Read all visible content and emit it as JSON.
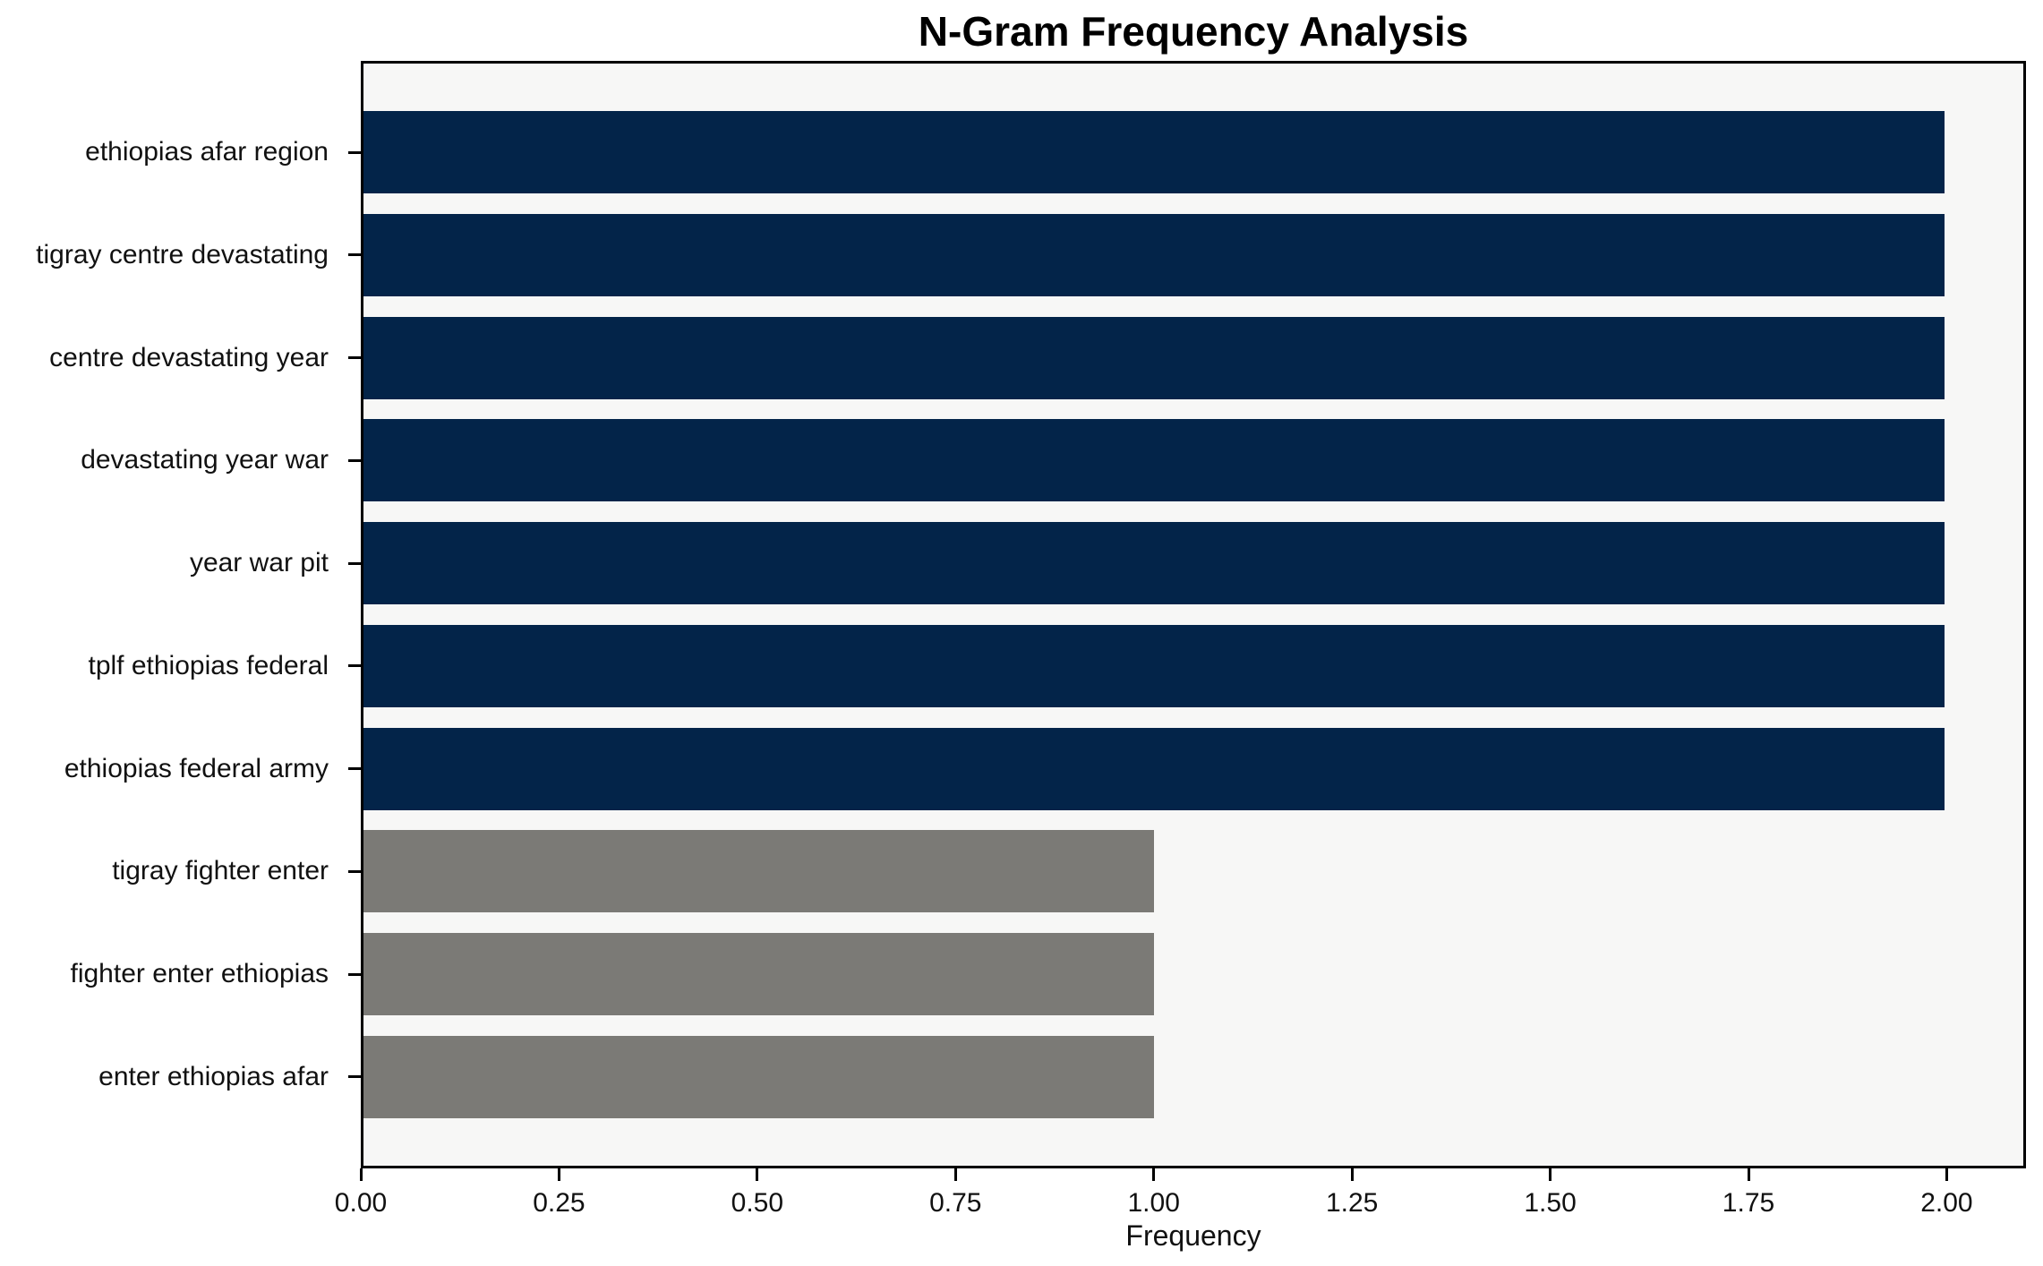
{
  "chart_data": {
    "type": "bar",
    "orientation": "horizontal",
    "title": "N-Gram Frequency Analysis",
    "xlabel": "Frequency",
    "ylabel": "",
    "categories": [
      "ethiopias afar region",
      "tigray centre devastating",
      "centre devastating year",
      "devastating year war",
      "year war pit",
      "tplf ethiopias federal",
      "ethiopias federal army",
      "tigray fighter enter",
      "fighter enter ethiopias",
      "enter ethiopias afar"
    ],
    "values": [
      2,
      2,
      2,
      2,
      2,
      2,
      2,
      1,
      1,
      1
    ],
    "bar_colors": [
      "#032449",
      "#032449",
      "#032449",
      "#032449",
      "#032449",
      "#032449",
      "#032449",
      "#7b7a76",
      "#7b7a76",
      "#7b7a76"
    ],
    "x_ticks": [
      "0.00",
      "0.25",
      "0.50",
      "0.75",
      "1.00",
      "1.25",
      "1.50",
      "1.75",
      "2.00"
    ],
    "xlim": [
      0,
      2.1
    ],
    "grid": false,
    "legend": false,
    "plot_background": "#f7f7f6",
    "figure_background": "#ffffff",
    "accent_color_high": "#032449",
    "accent_color_low": "#7b7a76"
  }
}
